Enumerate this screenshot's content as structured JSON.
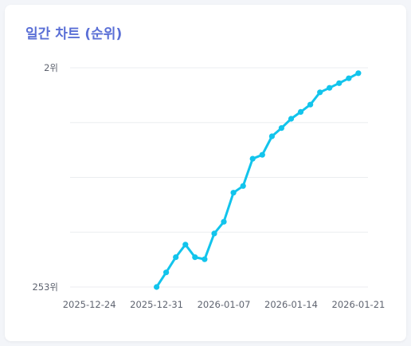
{
  "card": {
    "title": "일간 차트 (순위)"
  },
  "colors": {
    "title": "#5a6fd6",
    "line": "#12c4ec",
    "grid": "#ebedf0",
    "tick_text": "#5f6470"
  },
  "chart_data": {
    "type": "line",
    "title": "일간 차트 (순위)",
    "xlabel": "",
    "ylabel": "",
    "x_range": [
      "2025-12-22",
      "2026-01-22"
    ],
    "xticks": [
      "2025-12-24",
      "2025-12-31",
      "2026-01-07",
      "2026-01-14",
      "2026-01-21"
    ],
    "y_scale": "reciprocal",
    "y_range": [
      2,
      253
    ],
    "y_inverted": true,
    "yticks": [
      {
        "value": 2,
        "label": "2위"
      },
      {
        "value": 253,
        "label": "253위"
      }
    ],
    "grid": {
      "horizontal": true,
      "vertical": false
    },
    "legend": "none",
    "series": [
      {
        "x": [
          "2025-12-31",
          "2026-01-01",
          "2026-01-02",
          "2026-01-03",
          "2026-01-04",
          "2026-01-05",
          "2026-01-06",
          "2026-01-07",
          "2026-01-08",
          "2026-01-09",
          "2026-01-10",
          "2026-01-11",
          "2026-01-12",
          "2026-01-13",
          "2026-01-14",
          "2026-01-15",
          "2026-01-16",
          "2026-01-17",
          "2026-01-18",
          "2026-01-19",
          "2026-01-20",
          "2026-01-21"
        ],
        "values": [
          253,
          27,
          14,
          10,
          14,
          15,
          8,
          6.6,
          4.6,
          4.3,
          3.4,
          3.3,
          2.9,
          2.75,
          2.6,
          2.5,
          2.4,
          2.25,
          2.2,
          2.15,
          2.1,
          2.05
        ]
      }
    ]
  }
}
